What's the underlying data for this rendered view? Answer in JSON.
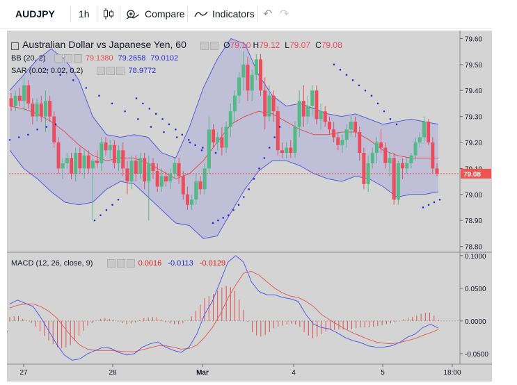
{
  "toolbar": {
    "symbol": "AUDJPY",
    "interval": "1h",
    "compare_label": "Compare",
    "indicators_label": "Indicators"
  },
  "legend": {
    "title": "Australian Dollar vs Japanese Yen, 60",
    "ohlc": {
      "o_label": "O",
      "o": "79.10",
      "h_label": "H",
      "h": "79.12",
      "l_label": "L",
      "l": "79.07",
      "c_label": "C",
      "c": "79.08"
    },
    "bb": {
      "label": "BB (20, 2)",
      "basis": "79.1380",
      "upper": "79.2658",
      "lower": "79.0102"
    },
    "sar": {
      "label": "SAR (0.02, 0.02, 0.2)",
      "value": "78.9772"
    },
    "macd": {
      "label": "MACD (12, 26, close, 9)",
      "hist": "0.0016",
      "macd": "-0.0113",
      "signal": "-0.0129"
    }
  },
  "colors": {
    "up": "#53b987",
    "down": "#eb4d5c",
    "bb_band": "#5a5ad8",
    "bb_basis": "#e05050",
    "sar": "#2a2ad0",
    "macd_line": "#5a5ae0",
    "signal_line": "#e06060",
    "last_price": "#ef5350"
  },
  "chart_data": [
    {
      "type": "candlestick",
      "title": "Australian Dollar vs Japanese Yen, 60",
      "x_tick_labels": [
        "27",
        "28",
        "Mar",
        "4",
        "5",
        "18:00"
      ],
      "y_tick_labels": [
        "79.60",
        "79.50",
        "79.40",
        "79.30",
        "79.20",
        "79.10",
        "79.00",
        "78.90",
        "78.80"
      ],
      "ylim": [
        78.78,
        79.62
      ],
      "last_price": "79.08",
      "candles": [
        [
          79.37,
          79.39,
          79.32,
          79.34
        ],
        [
          79.34,
          79.4,
          79.32,
          79.38
        ],
        [
          79.38,
          79.41,
          79.34,
          79.36
        ],
        [
          79.36,
          79.45,
          79.32,
          79.42
        ],
        [
          79.42,
          79.44,
          79.33,
          79.35
        ],
        [
          79.35,
          79.37,
          79.27,
          79.3
        ],
        [
          79.3,
          79.37,
          79.28,
          79.35
        ],
        [
          79.35,
          79.38,
          79.28,
          79.3
        ],
        [
          79.3,
          79.4,
          79.24,
          79.36
        ],
        [
          79.36,
          79.38,
          79.28,
          79.3
        ],
        [
          79.3,
          79.32,
          79.18,
          79.2
        ],
        [
          79.2,
          79.22,
          79.08,
          79.1
        ],
        [
          79.1,
          79.14,
          79.06,
          79.12
        ],
        [
          79.12,
          79.16,
          79.1,
          79.14
        ],
        [
          79.14,
          79.16,
          79.06,
          79.08
        ],
        [
          79.08,
          79.18,
          79.05,
          79.16
        ],
        [
          79.16,
          79.18,
          79.08,
          79.1
        ],
        [
          79.1,
          79.17,
          79.06,
          79.15
        ],
        [
          79.15,
          79.17,
          79.08,
          79.1
        ],
        [
          79.1,
          79.14,
          78.9,
          79.13
        ],
        [
          79.13,
          79.17,
          79.1,
          79.12
        ],
        [
          79.12,
          79.22,
          79.09,
          79.2
        ],
        [
          79.2,
          79.22,
          79.15,
          79.17
        ],
        [
          79.17,
          79.21,
          79.14,
          79.19
        ],
        [
          79.19,
          79.21,
          79.1,
          79.12
        ],
        [
          79.12,
          79.19,
          79.09,
          79.17
        ],
        [
          79.17,
          79.2,
          79.07,
          79.1
        ],
        [
          79.1,
          79.13,
          79.0,
          79.05
        ],
        [
          79.05,
          79.15,
          79.02,
          79.13
        ],
        [
          79.13,
          79.15,
          79.05,
          79.08
        ],
        [
          79.08,
          79.16,
          79.06,
          79.14
        ],
        [
          79.14,
          79.16,
          79.02,
          79.05
        ],
        [
          79.05,
          79.15,
          78.9,
          79.12
        ],
        [
          79.12,
          79.14,
          79.06,
          79.09
        ],
        [
          79.09,
          79.12,
          79.01,
          79.03
        ],
        [
          79.03,
          79.1,
          79.01,
          79.07
        ],
        [
          79.07,
          79.09,
          79.03,
          79.05
        ],
        [
          79.05,
          79.1,
          79.02,
          79.08
        ],
        [
          79.08,
          79.14,
          79.06,
          79.12
        ],
        [
          79.12,
          79.14,
          79.04,
          79.07
        ],
        [
          79.07,
          79.09,
          78.98,
          79.0
        ],
        [
          79.0,
          79.03,
          78.94,
          78.96
        ],
        [
          78.96,
          79.0,
          78.94,
          78.98
        ],
        [
          78.98,
          79.08,
          78.96,
          79.05
        ],
        [
          79.05,
          79.07,
          79.0,
          79.02
        ],
        [
          79.02,
          79.12,
          79.0,
          79.1
        ],
        [
          79.1,
          79.3,
          79.08,
          79.25
        ],
        [
          79.25,
          79.27,
          79.18,
          79.2
        ],
        [
          79.2,
          79.24,
          79.17,
          79.22
        ],
        [
          79.22,
          79.26,
          79.15,
          79.18
        ],
        [
          79.18,
          79.28,
          79.16,
          79.26
        ],
        [
          79.26,
          79.35,
          79.22,
          79.32
        ],
        [
          79.32,
          79.4,
          79.28,
          79.38
        ],
        [
          79.38,
          79.47,
          79.35,
          79.45
        ],
        [
          79.45,
          79.55,
          79.4,
          79.5
        ],
        [
          79.5,
          79.53,
          79.36,
          79.4
        ],
        [
          79.4,
          79.48,
          79.36,
          79.46
        ],
        [
          79.46,
          79.54,
          79.44,
          79.52
        ],
        [
          79.52,
          79.54,
          79.38,
          79.4
        ],
        [
          79.4,
          79.45,
          79.25,
          79.3
        ],
        [
          79.3,
          79.42,
          79.28,
          79.38
        ],
        [
          79.38,
          79.4,
          79.28,
          79.32
        ],
        [
          79.32,
          79.34,
          79.15,
          79.17
        ],
        [
          79.17,
          79.2,
          79.14,
          79.16
        ],
        [
          79.16,
          79.2,
          79.14,
          79.18
        ],
        [
          79.18,
          79.21,
          79.14,
          79.16
        ],
        [
          79.16,
          79.28,
          79.14,
          79.26
        ],
        [
          79.26,
          79.4,
          79.22,
          79.36
        ],
        [
          79.36,
          79.42,
          79.26,
          79.3
        ],
        [
          79.3,
          79.38,
          79.27,
          79.34
        ],
        [
          79.34,
          79.42,
          79.3,
          79.4
        ],
        [
          79.4,
          79.42,
          79.27,
          79.29
        ],
        [
          79.29,
          79.35,
          79.25,
          79.32
        ],
        [
          79.32,
          79.34,
          79.26,
          79.28
        ],
        [
          79.28,
          79.3,
          79.23,
          79.25
        ],
        [
          79.25,
          79.28,
          79.2,
          79.22
        ],
        [
          79.22,
          79.24,
          79.17,
          79.19
        ],
        [
          79.19,
          79.23,
          79.16,
          79.21
        ],
        [
          79.21,
          79.27,
          79.18,
          79.25
        ],
        [
          79.25,
          79.3,
          79.22,
          79.28
        ],
        [
          79.28,
          79.3,
          79.22,
          79.24
        ],
        [
          79.24,
          79.26,
          79.13,
          79.16
        ],
        [
          79.16,
          79.18,
          79.02,
          79.04
        ],
        [
          79.04,
          79.15,
          79.01,
          79.12
        ],
        [
          79.12,
          79.18,
          79.1,
          79.16
        ],
        [
          79.16,
          79.22,
          79.12,
          79.2
        ],
        [
          79.2,
          79.25,
          79.16,
          79.18
        ],
        [
          79.18,
          79.2,
          79.1,
          79.12
        ],
        [
          79.12,
          79.16,
          79.07,
          79.14
        ],
        [
          79.14,
          79.16,
          78.96,
          78.98
        ],
        [
          78.98,
          79.13,
          78.96,
          79.12
        ],
        [
          79.12,
          79.14,
          79.06,
          79.1
        ],
        [
          79.1,
          79.14,
          79.08,
          79.12
        ],
        [
          79.12,
          79.16,
          79.1,
          79.15
        ],
        [
          79.15,
          79.22,
          79.13,
          79.2
        ],
        [
          79.2,
          79.24,
          79.18,
          79.22
        ],
        [
          79.22,
          79.3,
          79.2,
          79.28
        ],
        [
          79.28,
          79.29,
          79.19,
          79.2
        ],
        [
          79.2,
          79.22,
          79.08,
          79.1
        ],
        [
          79.1,
          79.12,
          79.07,
          79.08
        ]
      ],
      "bollinger": {
        "upper": [
          79.4,
          79.46,
          79.52,
          79.56,
          79.52,
          79.44,
          79.3,
          79.23,
          79.22,
          79.23,
          79.22,
          79.16,
          79.14,
          79.26,
          79.41,
          79.52,
          79.6,
          79.58,
          79.46,
          79.38,
          79.34,
          79.35,
          79.33,
          79.31,
          79.3,
          79.31,
          79.29,
          79.27,
          79.28,
          79.29,
          79.28,
          79.27
        ],
        "basis": [
          79.34,
          79.33,
          79.31,
          79.28,
          79.24,
          79.19,
          79.15,
          79.13,
          79.14,
          79.14,
          79.12,
          79.09,
          79.06,
          79.08,
          79.13,
          79.2,
          79.27,
          79.3,
          79.32,
          79.31,
          79.28,
          79.25,
          79.23,
          79.23,
          79.24,
          79.24,
          79.21,
          79.17,
          79.15,
          79.14,
          79.14,
          79.14
        ],
        "lower": [
          79.17,
          79.1,
          79.06,
          79.01,
          78.97,
          78.96,
          78.97,
          79.02,
          79.05,
          79.04,
          78.99,
          78.94,
          78.89,
          78.88,
          78.83,
          78.84,
          78.93,
          79.02,
          79.09,
          79.13,
          79.13,
          79.11,
          79.08,
          79.06,
          79.05,
          79.07,
          79.06,
          79.03,
          78.99,
          79.0,
          79.0,
          79.01
        ]
      },
      "parabolic_sar": [
        [
          79.21,
          79.22,
          79.23,
          79.25,
          79.26,
          79.27
        ],
        [
          79.48,
          79.46,
          79.44,
          79.41,
          79.38,
          79.35,
          79.32,
          79.29,
          79.26,
          79.24,
          79.22,
          79.2,
          79.18,
          79.16
        ],
        [
          78.9,
          78.92,
          78.94,
          78.96,
          78.98
        ],
        [
          79.37,
          79.35,
          79.33,
          79.31,
          79.29,
          79.27,
          79.25,
          79.23,
          79.21,
          79.19,
          79.17
        ],
        [
          78.89,
          78.9,
          78.91,
          78.92,
          78.94,
          78.96,
          78.99,
          79.02,
          79.06,
          79.1,
          79.14,
          79.18,
          79.22,
          79.26
        ],
        [
          79.5,
          79.48,
          79.46,
          79.44,
          79.42,
          79.4,
          79.38,
          79.35,
          79.32,
          79.29,
          79.27
        ],
        [
          78.95,
          78.96,
          78.97,
          78.98
        ]
      ]
    },
    {
      "type": "line",
      "title": "MACD (12, 26, close, 9)",
      "y_tick_labels": [
        "0.1000",
        "0.0500",
        "0.0000",
        "-0.0500"
      ],
      "ylim": [
        -0.066,
        0.104
      ],
      "series": [
        {
          "name": "MACD",
          "values": [
            0.026,
            0.032,
            0.027,
            0.022,
            0.005,
            -0.015,
            -0.035,
            -0.052,
            -0.06,
            -0.058,
            -0.05,
            -0.045,
            -0.04,
            -0.042,
            -0.048,
            -0.052,
            -0.05,
            -0.04,
            -0.035,
            -0.032,
            -0.04,
            -0.045,
            -0.048,
            -0.04,
            -0.02,
            0.01,
            0.03,
            0.06,
            0.09,
            0.1,
            0.09,
            0.06,
            0.045,
            0.04,
            0.04,
            0.036,
            0.034,
            0.03,
            0.01,
            -0.005,
            -0.01,
            -0.012,
            -0.018,
            -0.025,
            -0.03,
            -0.033,
            -0.038,
            -0.04,
            -0.04,
            -0.038,
            -0.033,
            -0.025,
            -0.02,
            -0.01,
            -0.005,
            -0.011
          ]
        },
        {
          "name": "Signal",
          "values": [
            0.02,
            0.024,
            0.026,
            0.026,
            0.022,
            0.015,
            0.005,
            -0.01,
            -0.025,
            -0.037,
            -0.043,
            -0.045,
            -0.045,
            -0.045,
            -0.046,
            -0.047,
            -0.047,
            -0.044,
            -0.041,
            -0.038,
            -0.038,
            -0.04,
            -0.043,
            -0.042,
            -0.037,
            -0.025,
            -0.01,
            0.01,
            0.035,
            0.055,
            0.073,
            0.076,
            0.07,
            0.06,
            0.05,
            0.043,
            0.038,
            0.036,
            0.03,
            0.022,
            0.01,
            0.002,
            -0.005,
            -0.012,
            -0.018,
            -0.023,
            -0.028,
            -0.032,
            -0.034,
            -0.035,
            -0.033,
            -0.03,
            -0.027,
            -0.022,
            -0.018,
            -0.013
          ]
        }
      ]
    }
  ]
}
